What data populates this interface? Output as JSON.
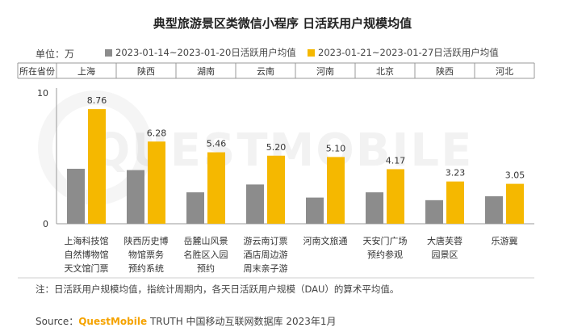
{
  "title": "典型旅游景区类微信小程序 日活跃用户规模均值",
  "unit_label": "单位：万",
  "province_header": "所在省份",
  "note": "注：日活跃用户规模均值，指统计周期内，各天日活跃用户规模（DAU）的算术平均值。",
  "source": {
    "prefix": "Source：",
    "brand": "QuestMobile",
    "suffix": " TRUTH 中国移动互联网数据库 2023年1月"
  },
  "watermark": "QUESTMOBILE",
  "colors": {
    "series1": "#8c8c8c",
    "series2": "#f5b800",
    "axis": "#999999"
  },
  "chart_data": {
    "type": "bar",
    "ylim": [
      0,
      10
    ],
    "yticks": [
      0,
      10
    ],
    "provinces": [
      "上海",
      "陕西",
      "湖南",
      "云南",
      "河南",
      "北京",
      "陕西",
      "河北"
    ],
    "categories": [
      [
        "上海科技馆",
        "自然博物馆",
        "天文馆门票"
      ],
      [
        "陕西历史博",
        "物馆票务",
        "预约系统"
      ],
      [
        "岳麓山风景",
        "名胜区入园",
        "预约"
      ],
      [
        "游云南订票",
        "酒店周边游",
        "周末亲子游"
      ],
      [
        "河南文旅通"
      ],
      [
        "天安门广场",
        "预约参观"
      ],
      [
        "大唐芙蓉",
        "园景区"
      ],
      [
        "乐游冀"
      ]
    ],
    "series": [
      {
        "name": "2023-01-14~2023-01-20日活跃用户均值",
        "values": [
          4.2,
          4.1,
          2.4,
          3.0,
          2.0,
          2.4,
          1.8,
          2.1
        ]
      },
      {
        "name": "2023-01-21~2023-01-27日活跃用户均值",
        "values": [
          8.76,
          6.28,
          5.46,
          5.2,
          5.1,
          4.17,
          3.23,
          3.05
        ],
        "labels": [
          "8.76",
          "6.28",
          "5.46",
          "5.20",
          "5.10",
          "4.17",
          "3.23",
          "3.05"
        ]
      }
    ]
  }
}
